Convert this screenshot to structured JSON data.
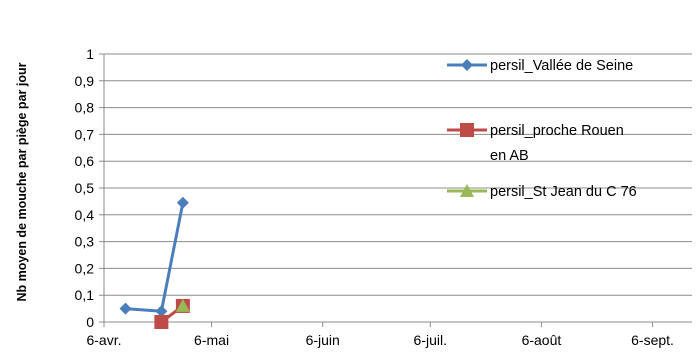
{
  "chart_data": {
    "type": "line",
    "ylabel": "Nb moyen de mouche par piège par jour",
    "xlabel": "",
    "title": "",
    "ylim": [
      0,
      1
    ],
    "yticks": [
      "0",
      "0,1",
      "0,2",
      "0,3",
      "0,4",
      "0,5",
      "0,6",
      "0,7",
      "0,8",
      "0,9",
      "1"
    ],
    "xlim": [
      "2011-04-06",
      "2011-09-17"
    ],
    "xticks": [
      {
        "date": "2011-04-06",
        "label": "6-avr."
      },
      {
        "date": "2011-05-06",
        "label": "6-mai"
      },
      {
        "date": "2011-06-06",
        "label": "6-juin"
      },
      {
        "date": "2011-07-06",
        "label": "6-juil."
      },
      {
        "date": "2011-08-06",
        "label": "6-août"
      },
      {
        "date": "2011-09-06",
        "label": "6-sept."
      }
    ],
    "grid": "horizontal",
    "legend_position": "right",
    "series": [
      {
        "name": "persil_Vallée de Seine",
        "name_lines": [
          "persil_Vallée de Seine"
        ],
        "color": "#4a7ebb",
        "marker": "diamond",
        "points": [
          {
            "x": "2011-04-12",
            "y": 0.05
          },
          {
            "x": "2011-04-22",
            "y": 0.04
          },
          {
            "x": "2011-04-28",
            "y": 0.445
          }
        ]
      },
      {
        "name": "persil_proche Rouen en AB",
        "name_lines": [
          "persil_proche Rouen",
          "en AB"
        ],
        "color": "#be4b48",
        "marker": "square",
        "points": [
          {
            "x": "2011-04-22",
            "y": 0.0
          },
          {
            "x": "2011-04-28",
            "y": 0.06
          }
        ]
      },
      {
        "name": "persil_St Jean du C 76",
        "name_lines": [
          "persil_St Jean du C 76"
        ],
        "color": "#98b954",
        "marker": "triangle",
        "points": [
          {
            "x": "2011-04-28",
            "y": 0.06
          }
        ]
      }
    ]
  }
}
